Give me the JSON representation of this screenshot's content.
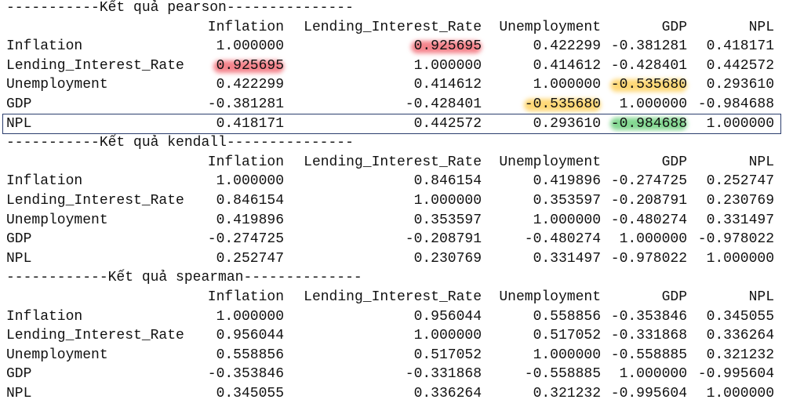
{
  "sections": [
    {
      "header": "-----------Kết quả pearson---------------",
      "columns": [
        "Inflation",
        "Lending_Interest_Rate",
        "Unemployment",
        "GDP",
        "NPL"
      ],
      "rows": [
        {
          "label": "Inflation",
          "values": [
            "1.000000",
            "0.925695",
            "0.422299",
            "-0.381281",
            "0.418171"
          ]
        },
        {
          "label": "Lending_Interest_Rate",
          "values": [
            "0.925695",
            "1.000000",
            "0.414612",
            "-0.428401",
            "0.442572"
          ]
        },
        {
          "label": "Unemployment",
          "values": [
            "0.422299",
            "0.414612",
            "1.000000",
            "-0.535680",
            "0.293610"
          ]
        },
        {
          "label": "GDP",
          "values": [
            "-0.381281",
            "-0.428401",
            "-0.535680",
            "1.000000",
            "-0.984688"
          ]
        },
        {
          "label": "NPL",
          "values": [
            "0.418171",
            "0.442572",
            "0.293610",
            "-0.984688",
            "1.000000"
          ]
        }
      ]
    },
    {
      "header": "-----------Kết quả kendall---------------",
      "columns": [
        "Inflation",
        "Lending_Interest_Rate",
        "Unemployment",
        "GDP",
        "NPL"
      ],
      "rows": [
        {
          "label": "Inflation",
          "values": [
            "1.000000",
            "0.846154",
            "0.419896",
            "-0.274725",
            "0.252747"
          ]
        },
        {
          "label": "Lending_Interest_Rate",
          "values": [
            "0.846154",
            "1.000000",
            "0.353597",
            "-0.208791",
            "0.230769"
          ]
        },
        {
          "label": "Unemployment",
          "values": [
            "0.419896",
            "0.353597",
            "1.000000",
            "-0.480274",
            "0.331497"
          ]
        },
        {
          "label": "GDP",
          "values": [
            "-0.274725",
            "-0.208791",
            "-0.480274",
            "1.000000",
            "-0.978022"
          ]
        },
        {
          "label": "NPL",
          "values": [
            "0.252747",
            "0.230769",
            "0.331497",
            "-0.978022",
            "1.000000"
          ]
        }
      ]
    },
    {
      "header": "------------Kết quả spearman--------------",
      "columns": [
        "Inflation",
        "Lending_Interest_Rate",
        "Unemployment",
        "GDP",
        "NPL"
      ],
      "rows": [
        {
          "label": "Inflation",
          "values": [
            "1.000000",
            "0.956044",
            "0.558856",
            "-0.353846",
            "0.345055"
          ]
        },
        {
          "label": "Lending_Interest_Rate",
          "values": [
            "0.956044",
            "1.000000",
            "0.517052",
            "-0.331868",
            "0.336264"
          ]
        },
        {
          "label": "Unemployment",
          "values": [
            "0.558856",
            "0.517052",
            "1.000000",
            "-0.558885",
            "0.321232"
          ]
        },
        {
          "label": "GDP",
          "values": [
            "-0.353846",
            "-0.331868",
            "-0.558885",
            "1.000000",
            "-0.995604"
          ]
        },
        {
          "label": "NPL",
          "values": [
            "0.345055",
            "0.336264",
            "0.321232",
            "-0.995604",
            "1.000000"
          ]
        }
      ]
    }
  ]
}
